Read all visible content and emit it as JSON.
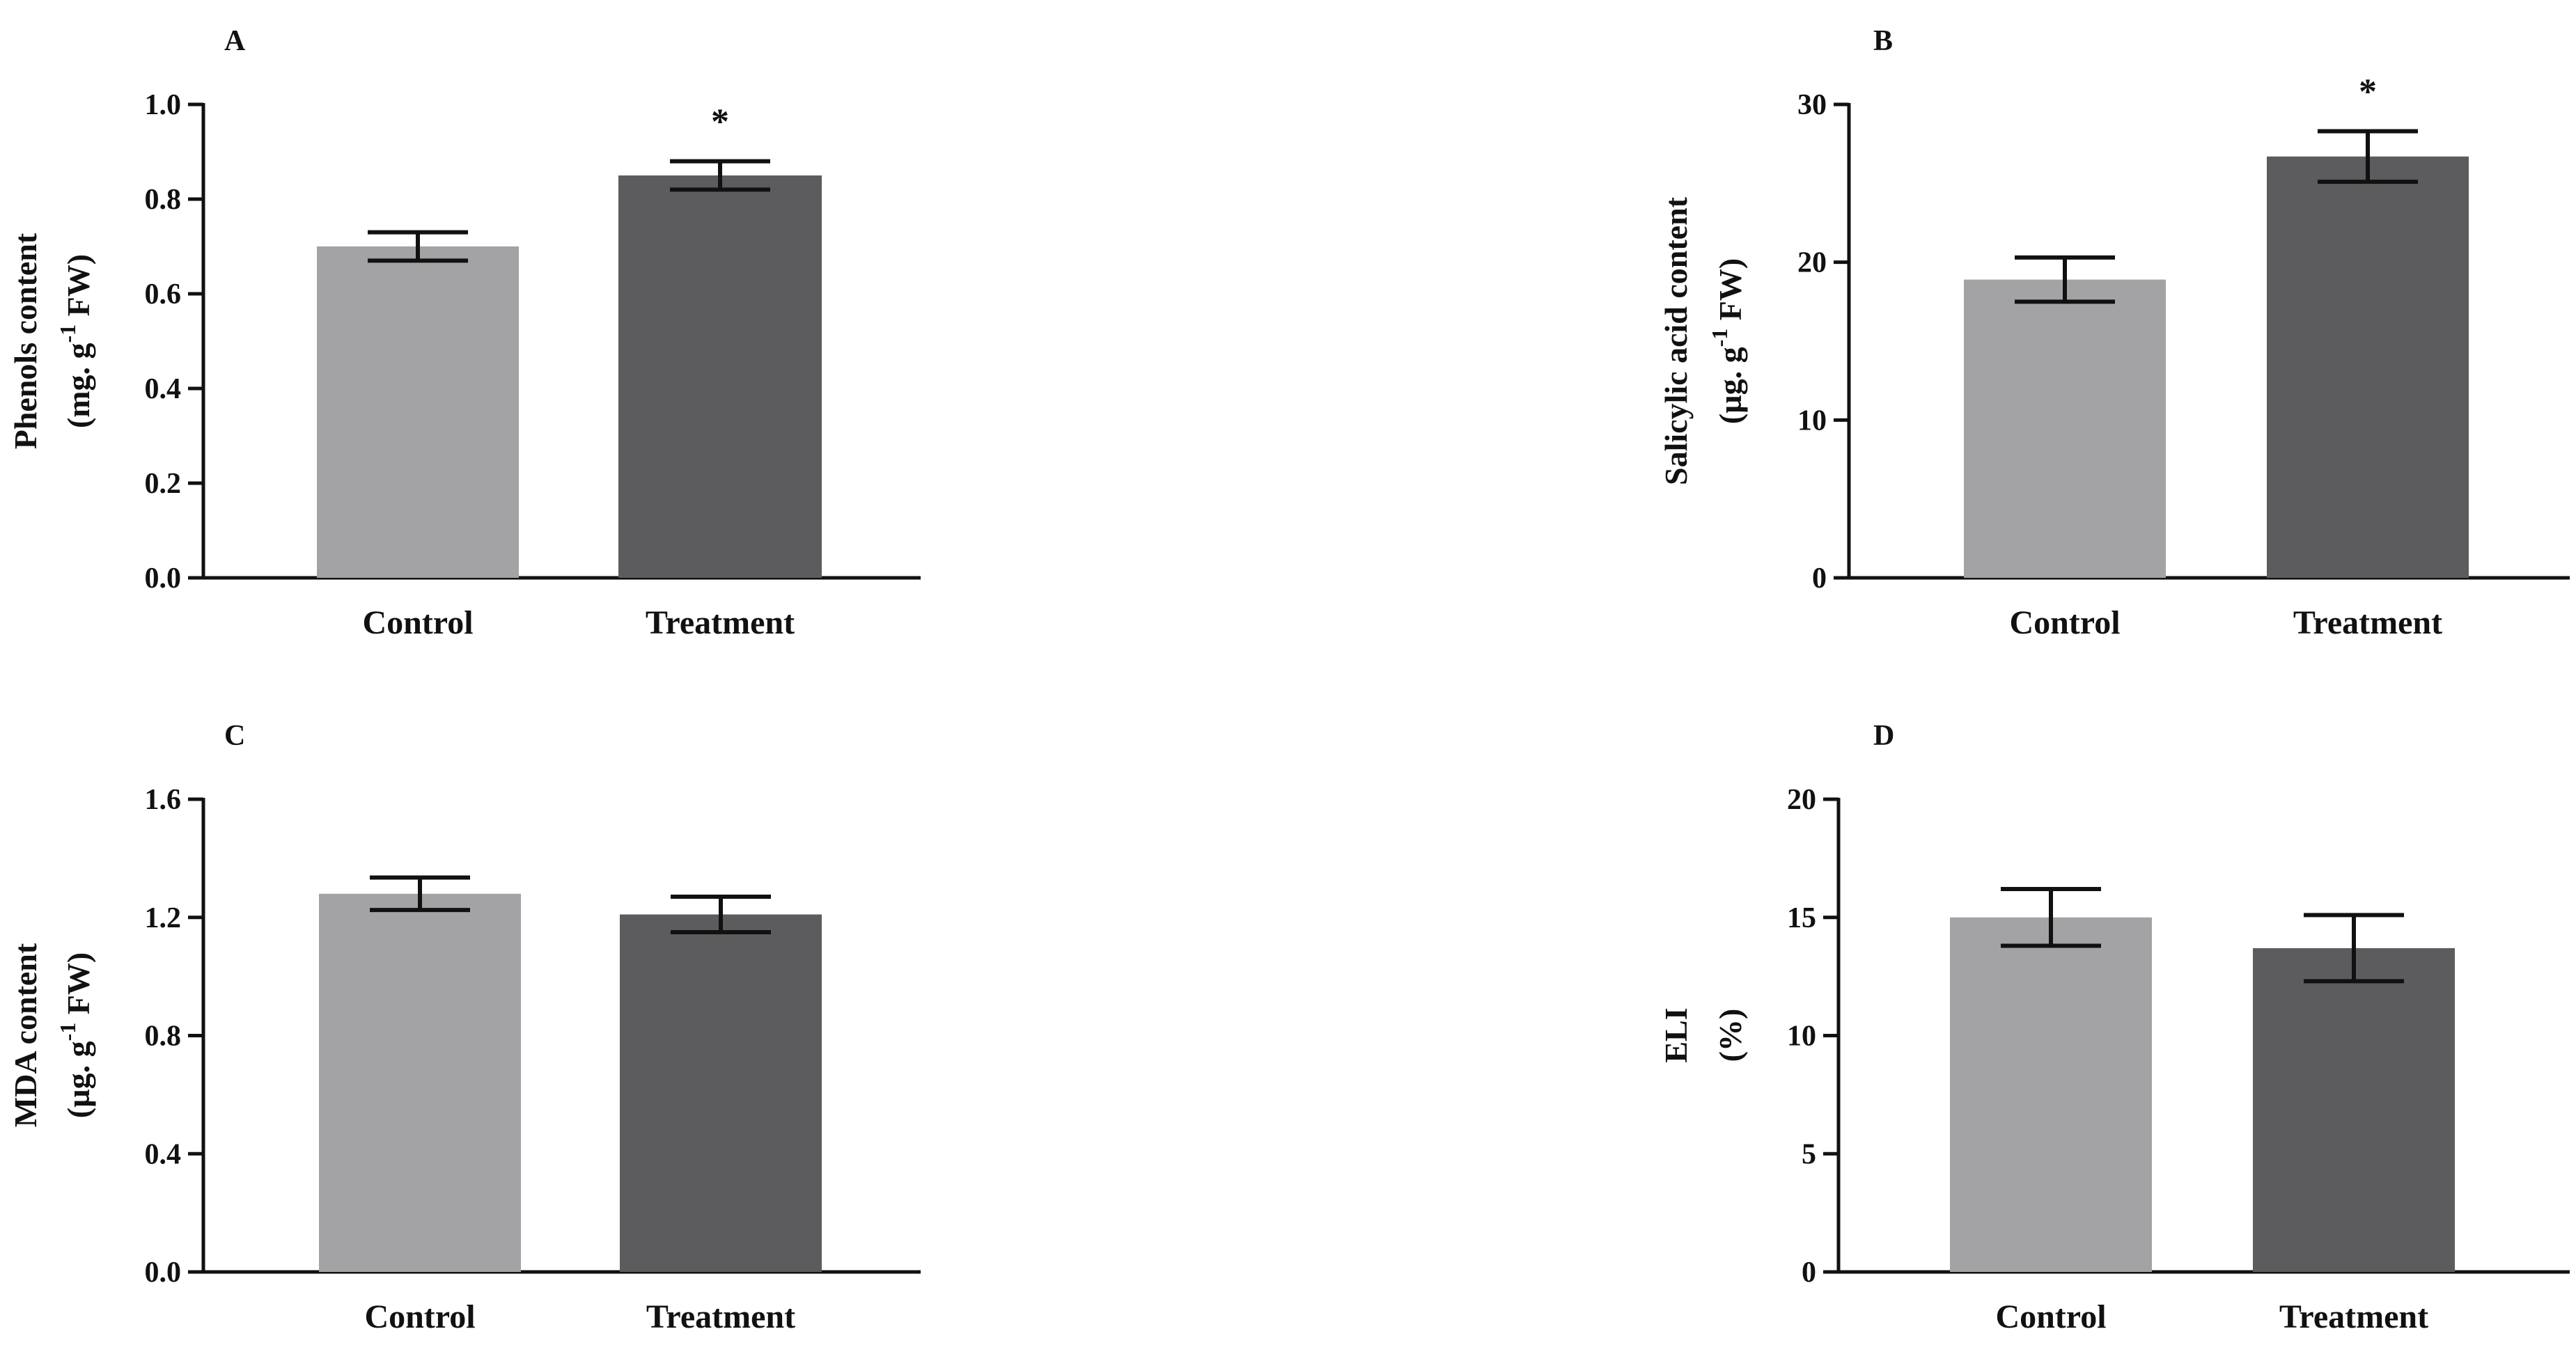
{
  "chart_data": [
    {
      "type": "bar",
      "panel": "A",
      "categories": [
        "Control",
        "Treatment"
      ],
      "values": [
        0.7,
        0.85
      ],
      "errors": [
        0.03,
        0.03
      ],
      "significance": [
        "",
        "*"
      ],
      "ylabel_line1": "Phenols content",
      "ylabel_line2_pre": "(mg. g",
      "ylabel_sup": "-1",
      "ylabel_line2_post": " FW)",
      "ylim": [
        0,
        1.0
      ],
      "yticks": [
        0.0,
        0.2,
        0.4,
        0.6,
        0.8,
        1.0
      ],
      "ytick_labels": [
        "0.0",
        "0.2",
        "0.4",
        "0.6",
        "0.8",
        "1.0"
      ],
      "colors": [
        "#a3a3a6",
        "#5c5c5e"
      ]
    },
    {
      "type": "bar",
      "panel": "B",
      "categories": [
        "Control",
        "Treatment"
      ],
      "values": [
        18.9,
        26.7
      ],
      "errors": [
        1.4,
        1.6
      ],
      "significance": [
        "",
        "*"
      ],
      "ylabel_line1": "Salicylic acid content",
      "ylabel_line2_pre": "(µg. g",
      "ylabel_sup": "-1",
      "ylabel_line2_post": " FW)",
      "ylim": [
        0,
        30
      ],
      "yticks": [
        0,
        10,
        20,
        30
      ],
      "ytick_labels": [
        "0",
        "10",
        "20",
        "30"
      ],
      "colors": [
        "#a3a3a6",
        "#5c5c5e"
      ]
    },
    {
      "type": "bar",
      "panel": "C",
      "categories": [
        "Control",
        "Treatment"
      ],
      "values": [
        1.28,
        1.21
      ],
      "errors": [
        0.055,
        0.06
      ],
      "significance": [
        "",
        ""
      ],
      "ylabel_line1": "MDA content",
      "ylabel_line2_pre": "(µg. g",
      "ylabel_sup": "-1",
      "ylabel_line2_post": " FW)",
      "ylim": [
        0,
        1.6
      ],
      "yticks": [
        0.0,
        0.4,
        0.8,
        1.2,
        1.6
      ],
      "ytick_labels": [
        "0.0",
        "0.4",
        "0.8",
        "1.2",
        "1.6"
      ],
      "colors": [
        "#a3a3a6",
        "#5c5c5e"
      ]
    },
    {
      "type": "bar",
      "panel": "D",
      "categories": [
        "Control",
        "Treatment"
      ],
      "values": [
        15.0,
        13.7
      ],
      "errors": [
        1.2,
        1.4
      ],
      "significance": [
        "",
        ""
      ],
      "ylabel_line1": "ELI",
      "ylabel_line2_pre": "(%)",
      "ylabel_sup": "",
      "ylabel_line2_post": "",
      "ylim": [
        0,
        20
      ],
      "yticks": [
        0,
        5,
        10,
        15,
        20
      ],
      "ytick_labels": [
        "0",
        "5",
        "10",
        "15",
        "20"
      ],
      "colors": [
        "#a3a3a6",
        "#5c5c5e"
      ]
    }
  ]
}
